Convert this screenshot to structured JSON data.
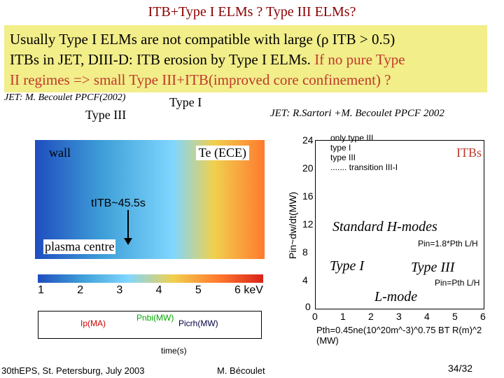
{
  "slide": {
    "title": "ITB+Type I ELMs ? Type III ELMs?",
    "box_line1": "Usually Type I ELMs are not compatible with large (ρ ITB > 0.5)",
    "box_line2_black": "ITBs in JET, DIII-D: ITB erosion by Type I ELMs. ",
    "box_line2_red": "If no pure Type",
    "box_line3_red": "II regimes => small Type III+ITB(improved core confinement) ?",
    "left_cite": "JET: M. Becoulet PPCF(2002)",
    "type1_label": "Type I",
    "type3_label": "Type III",
    "right_cite": "JET: R.Sartori +M. Becoulet PPCF 2002",
    "panel": {
      "wall": "wall",
      "te": "Te (ECE)",
      "tibt": "tITB~45.5s",
      "plasma_centre": "plasma centre"
    },
    "colorbar": {
      "ticks": [
        "1",
        "2",
        "3",
        "4",
        "5",
        "6 keV"
      ]
    },
    "bottom_graph": {
      "ip": "Ip(MA)",
      "pnbi": "Pnbi(MW)",
      "picrh": "Picrh(MW)",
      "xlabel": "time(s)"
    },
    "right_plot": {
      "ylabel": "Pin~dw/dt(MW)",
      "legend": [
        "only type III",
        "type I",
        "type III",
        "....... transition III-I"
      ],
      "itbs": "ITBs",
      "annot_h": "Standard H-modes",
      "annot_type_i": "Type I",
      "annot_type_iii": "Type III",
      "annot_lmode": "L-mode",
      "pin1": "Pin=1.8*Pth L/H",
      "pin2": "Pin=Pth L/H",
      "xlabel": "Pth=0.45ne(10^20m^-3)^0.75 BT R(m)^2 (MW)",
      "yticks": [
        "24",
        "20",
        "16",
        "12",
        "8",
        "4",
        "0"
      ],
      "xticks": [
        "0",
        "1",
        "2",
        "3",
        "4",
        "5",
        "6"
      ]
    },
    "footer": {
      "left": "30thEPS, St. Petersburg, July 2003",
      "mid": "M. Bécoulet",
      "right": "34/32"
    }
  }
}
